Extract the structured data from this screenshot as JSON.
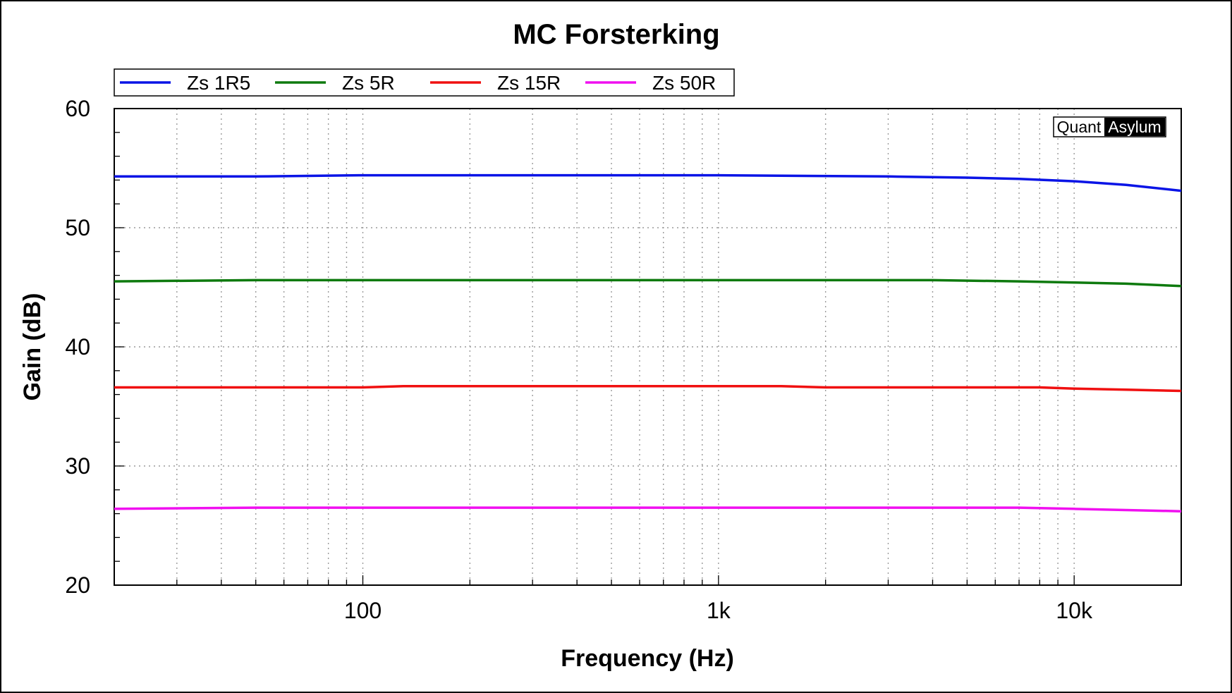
{
  "chart_data": {
    "type": "line",
    "title": "MC Forsterking",
    "xlabel": "Frequency (Hz)",
    "ylabel": "Gain (dB)",
    "x_scale": "log",
    "xlim": [
      20,
      20000
    ],
    "ylim": [
      20,
      60
    ],
    "x_ticks": [
      {
        "value": 100,
        "label": "100"
      },
      {
        "value": 1000,
        "label": "1k"
      },
      {
        "value": 10000,
        "label": "10k"
      }
    ],
    "y_ticks": [
      {
        "value": 20,
        "label": "20"
      },
      {
        "value": 30,
        "label": "30"
      },
      {
        "value": 40,
        "label": "40"
      },
      {
        "value": 50,
        "label": "50"
      },
      {
        "value": 60,
        "label": "60"
      }
    ],
    "grid": true,
    "legend": "top-left",
    "watermark": {
      "part1": "Quant",
      "part2": "Asylum"
    },
    "series": [
      {
        "name": "Zs 1R5",
        "color": "#0a14e6",
        "points": [
          [
            20,
            54.3
          ],
          [
            50,
            54.3
          ],
          [
            100,
            54.4
          ],
          [
            1000,
            54.4
          ],
          [
            3000,
            54.3
          ],
          [
            5000,
            54.2
          ],
          [
            7000,
            54.1
          ],
          [
            10000,
            53.9
          ],
          [
            14000,
            53.6
          ],
          [
            20000,
            53.1
          ]
        ]
      },
      {
        "name": "Zs 5R",
        "color": "#0e7a0e",
        "points": [
          [
            20,
            45.5
          ],
          [
            50,
            45.6
          ],
          [
            1000,
            45.6
          ],
          [
            4000,
            45.6
          ],
          [
            7000,
            45.5
          ],
          [
            10000,
            45.4
          ],
          [
            14000,
            45.3
          ],
          [
            20000,
            45.1
          ]
        ]
      },
      {
        "name": "Zs 15R",
        "color": "#f01010",
        "points": [
          [
            20,
            36.6
          ],
          [
            100,
            36.6
          ],
          [
            130,
            36.7
          ],
          [
            1500,
            36.7
          ],
          [
            2000,
            36.6
          ],
          [
            8000,
            36.6
          ],
          [
            10000,
            36.5
          ],
          [
            14000,
            36.4
          ],
          [
            20000,
            36.3
          ]
        ]
      },
      {
        "name": "Zs 50R",
        "color": "#f010f0",
        "points": [
          [
            20,
            26.4
          ],
          [
            50,
            26.5
          ],
          [
            7000,
            26.5
          ],
          [
            10000,
            26.4
          ],
          [
            14000,
            26.3
          ],
          [
            20000,
            26.2
          ]
        ]
      }
    ]
  }
}
